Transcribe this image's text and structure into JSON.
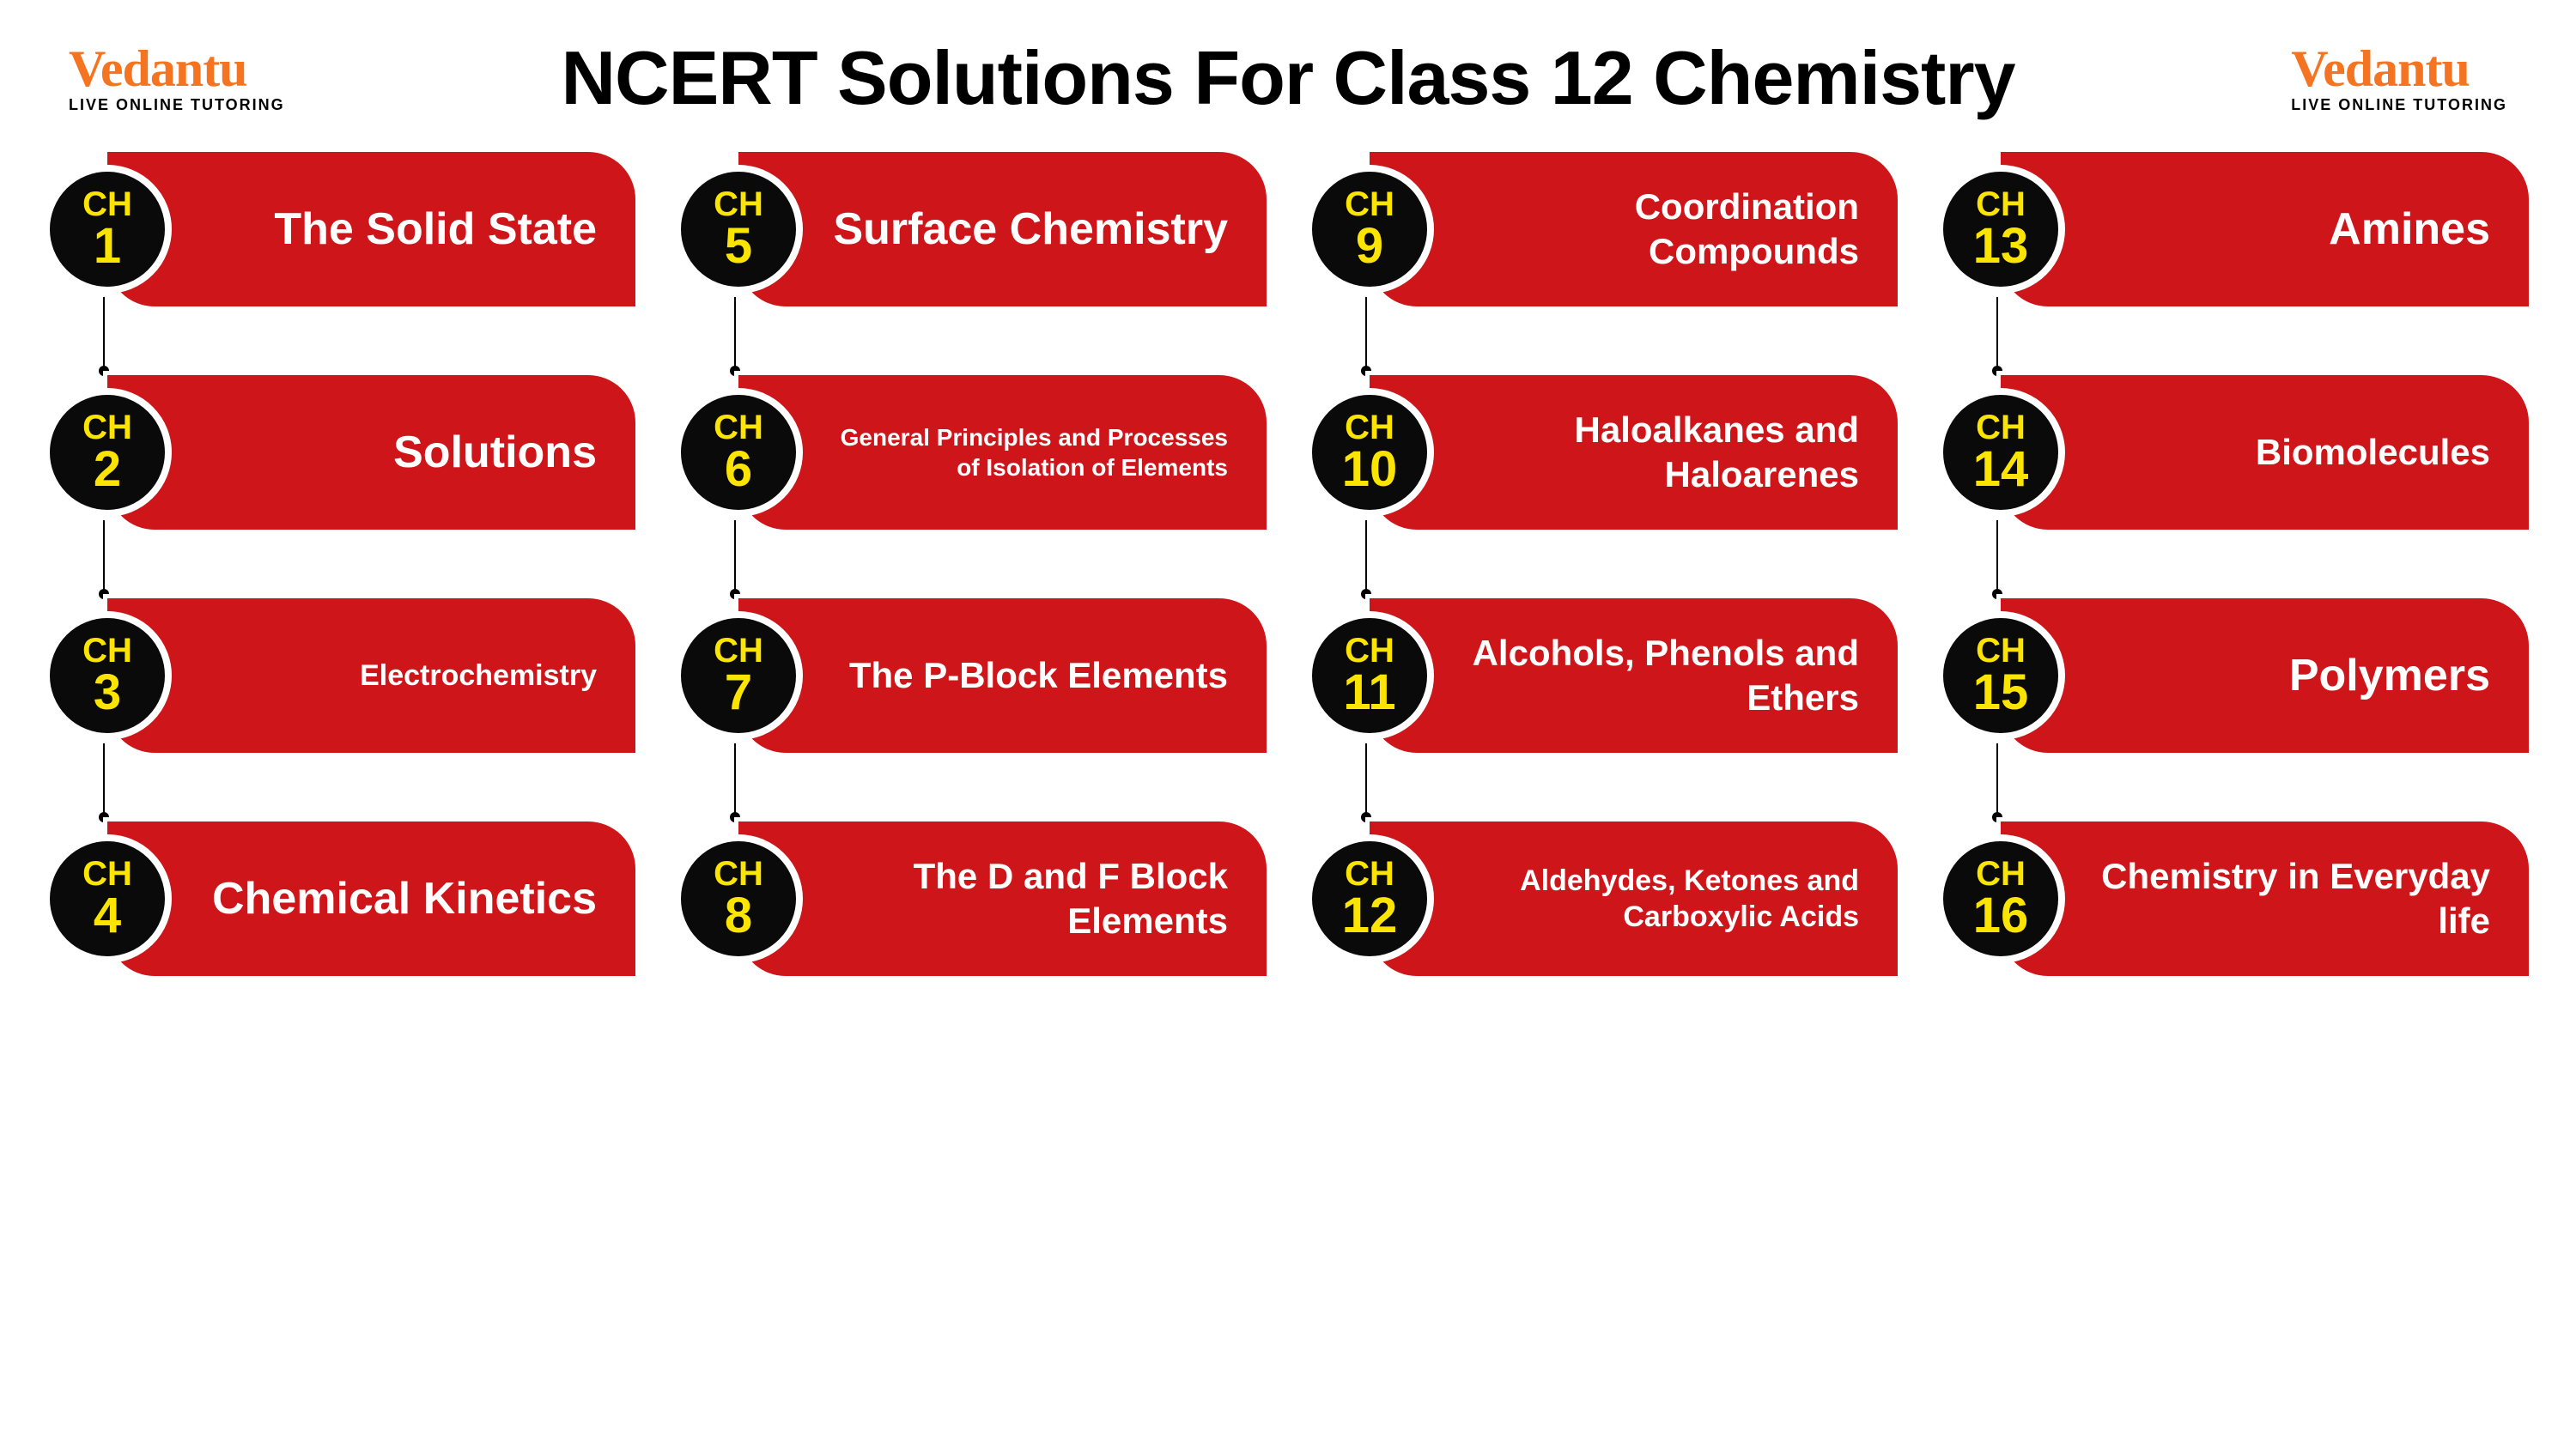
{
  "header": {
    "logo_brand": "Vedantu",
    "logo_tagline": "LIVE ONLINE TUTORING",
    "title": "NCERT Solutions For Class 12 Chemistry"
  },
  "colors": {
    "background": "#ffffff",
    "pill": "#ce1519",
    "circle": "#0a0a0a",
    "ch_text": "#fbe500",
    "title_text": "#ffffff",
    "logo": "#f47421",
    "heading": "#000000"
  },
  "ch_label": "CH",
  "chapters": [
    {
      "num": "1",
      "title": "The Solid State",
      "fs": "fs-large"
    },
    {
      "num": "2",
      "title": "Solutions",
      "fs": "fs-large"
    },
    {
      "num": "3",
      "title": "Electrochemistry",
      "fs": "fs-small"
    },
    {
      "num": "4",
      "title": "Chemical Kinetics",
      "fs": "fs-large"
    },
    {
      "num": "5",
      "title": "Surface Chemistry",
      "fs": "fs-large"
    },
    {
      "num": "6",
      "title": "General Principles and Processes of Isolation of Elements",
      "fs": "fs-xsmall"
    },
    {
      "num": "7",
      "title": "The P-Block Elements",
      "fs": "fs-medium"
    },
    {
      "num": "8",
      "title": "The D and F Block Elements",
      "fs": "fs-medium"
    },
    {
      "num": "9",
      "title": "Coordination Compounds",
      "fs": "fs-medium"
    },
    {
      "num": "10",
      "title": "Haloalkanes and Haloarenes",
      "fs": "fs-medium"
    },
    {
      "num": "11",
      "title": "Alcohols, Phenols and Ethers",
      "fs": "fs-medium"
    },
    {
      "num": "12",
      "title": "Aldehydes, Ketones and Carboxylic Acids",
      "fs": "fs-small"
    },
    {
      "num": "13",
      "title": "Amines",
      "fs": "fs-large"
    },
    {
      "num": "14",
      "title": "Biomolecules",
      "fs": "fs-medium"
    },
    {
      "num": "15",
      "title": "Polymers",
      "fs": "fs-large"
    },
    {
      "num": "16",
      "title": "Chemistry in Everyday life",
      "fs": "fs-medium"
    }
  ]
}
